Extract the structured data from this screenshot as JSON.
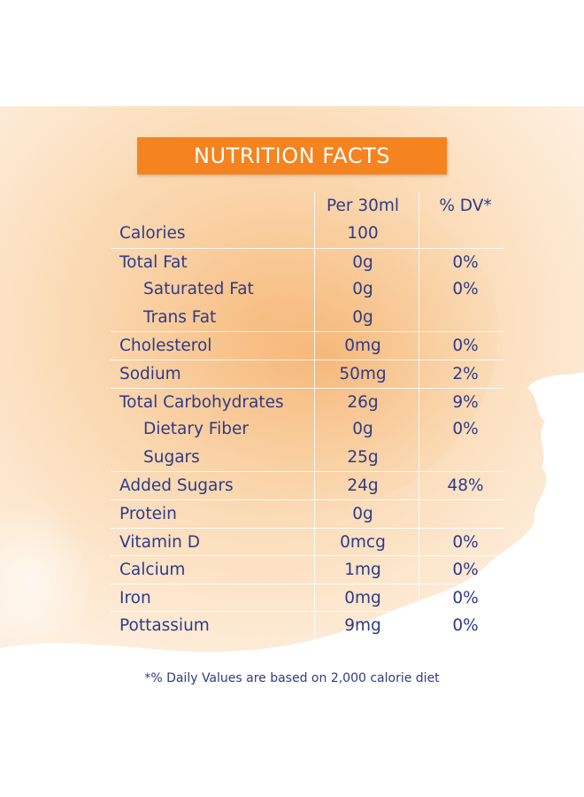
{
  "title": "NUTRITION FACTS",
  "columns": {
    "amount": "Per 30ml",
    "dv": "% DV*"
  },
  "rows": [
    {
      "label": "Calories",
      "amount": "100",
      "dv": "",
      "indent": false
    },
    {
      "label": "Total Fat",
      "amount": "0g",
      "dv": "0%",
      "indent": false
    },
    {
      "label": "Saturated Fat",
      "amount": "0g",
      "dv": "0%",
      "indent": true
    },
    {
      "label": "Trans Fat",
      "amount": "0g",
      "dv": "",
      "indent": true
    },
    {
      "label": "Cholesterol",
      "amount": "0mg",
      "dv": "0%",
      "indent": false
    },
    {
      "label": "Sodium",
      "amount": "50mg",
      "dv": "2%",
      "indent": false
    },
    {
      "label": "Total Carbohydrates",
      "amount": "26g",
      "dv": "9%",
      "indent": false
    },
    {
      "label": "Dietary Fiber",
      "amount": "0g",
      "dv": "0%",
      "indent": true
    },
    {
      "label": "Sugars",
      "amount": "25g",
      "dv": "",
      "indent": true
    },
    {
      "label": "Added Sugars",
      "amount": "24g",
      "dv": "48%",
      "indent": false
    },
    {
      "label": "Protein",
      "amount": "0g",
      "dv": "",
      "indent": false
    },
    {
      "label": "Vitamin D",
      "amount": "0mcg",
      "dv": "0%",
      "indent": false
    },
    {
      "label": "Calcium",
      "amount": "1mg",
      "dv": "0%",
      "indent": false
    },
    {
      "label": "Iron",
      "amount": "0mg",
      "dv": "0%",
      "indent": false
    },
    {
      "label": "Pottassium",
      "amount": "9mg",
      "dv": "0%",
      "indent": false
    }
  ],
  "footnote": "*% Daily Values are based on 2,000 calorie diet",
  "colors": {
    "header_bg": "#f5831f",
    "text": "#2e3b86",
    "wash": "#fbd9b2"
  }
}
